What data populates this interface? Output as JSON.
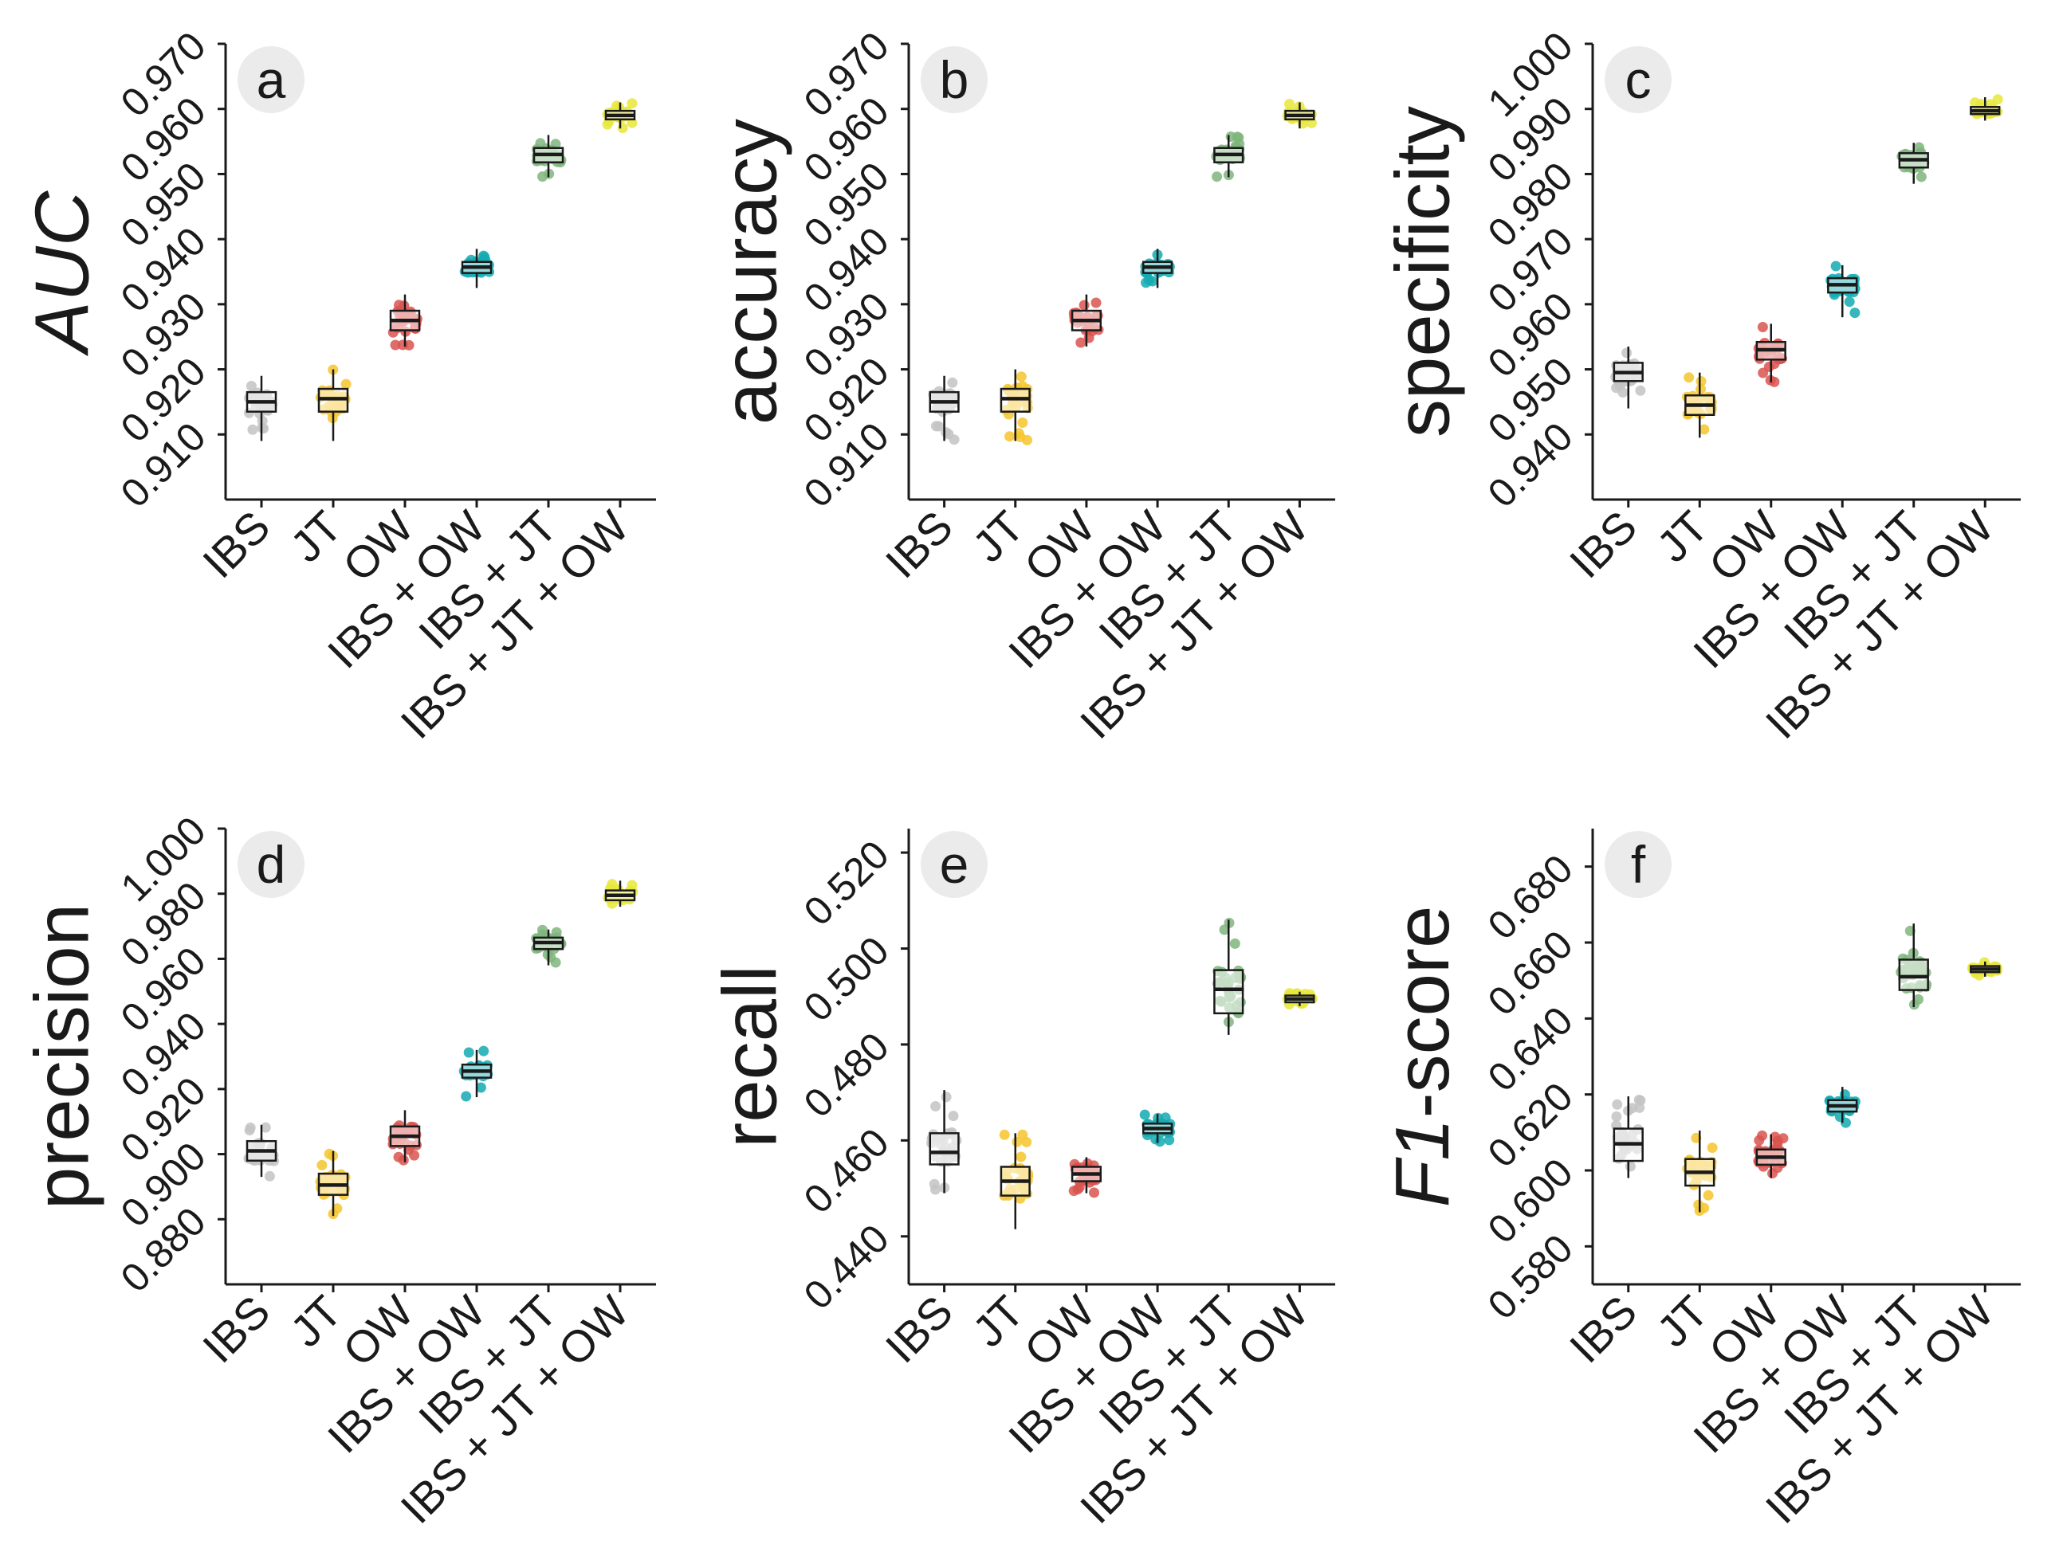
{
  "categories": [
    "IBS",
    "JT",
    "OW",
    "IBS + OW",
    "IBS + JT",
    "IBS + JT + OW"
  ],
  "colors": [
    "#c3c3c3",
    "#f6c52d",
    "#d9534f",
    "#14aab1",
    "#7fb57d",
    "#e8e83a"
  ],
  "chart_data": [
    {
      "type": "box",
      "letter": "a",
      "ylabel": "AUC",
      "ylabel_italic": true,
      "ylim": [
        0.9,
        0.97
      ],
      "ticks": [
        0.91,
        0.92,
        0.93,
        0.94,
        0.95,
        0.96,
        0.97
      ],
      "tick_labels": [
        "0.910",
        "0.920",
        "0.930",
        "0.940",
        "0.950",
        "0.960",
        "0.970"
      ],
      "boxes": [
        {
          "min": 0.909,
          "q1": 0.9135,
          "median": 0.915,
          "q3": 0.9165,
          "max": 0.919
        },
        {
          "min": 0.909,
          "q1": 0.9135,
          "median": 0.9155,
          "q3": 0.917,
          "max": 0.92
        },
        {
          "min": 0.9235,
          "q1": 0.926,
          "median": 0.9275,
          "q3": 0.929,
          "max": 0.9315
        },
        {
          "min": 0.9325,
          "q1": 0.9348,
          "median": 0.9357,
          "q3": 0.9365,
          "max": 0.9385
        },
        {
          "min": 0.9495,
          "q1": 0.9518,
          "median": 0.953,
          "q3": 0.954,
          "max": 0.956
        },
        {
          "min": 0.957,
          "q1": 0.9584,
          "median": 0.959,
          "q3": 0.9597,
          "max": 0.961
        }
      ]
    },
    {
      "type": "box",
      "letter": "b",
      "ylabel": "accuracy",
      "ylabel_italic": false,
      "ylim": [
        0.9,
        0.97
      ],
      "ticks": [
        0.91,
        0.92,
        0.93,
        0.94,
        0.95,
        0.96,
        0.97
      ],
      "tick_labels": [
        "0.910",
        "0.920",
        "0.930",
        "0.940",
        "0.950",
        "0.960",
        "0.970"
      ],
      "boxes": [
        {
          "min": 0.909,
          "q1": 0.9135,
          "median": 0.915,
          "q3": 0.9165,
          "max": 0.919
        },
        {
          "min": 0.909,
          "q1": 0.9135,
          "median": 0.9155,
          "q3": 0.917,
          "max": 0.92
        },
        {
          "min": 0.9235,
          "q1": 0.926,
          "median": 0.9275,
          "q3": 0.929,
          "max": 0.9315
        },
        {
          "min": 0.9325,
          "q1": 0.9348,
          "median": 0.9357,
          "q3": 0.9365,
          "max": 0.9385
        },
        {
          "min": 0.9495,
          "q1": 0.9518,
          "median": 0.953,
          "q3": 0.954,
          "max": 0.956
        },
        {
          "min": 0.957,
          "q1": 0.9584,
          "median": 0.959,
          "q3": 0.9597,
          "max": 0.961
        }
      ]
    },
    {
      "type": "box",
      "letter": "c",
      "ylabel": "specificity",
      "ylabel_italic": false,
      "ylim": [
        0.93,
        1.0
      ],
      "ticks": [
        0.94,
        0.95,
        0.96,
        0.97,
        0.98,
        0.99,
        1.0
      ],
      "tick_labels": [
        "0.940",
        "0.950",
        "0.960",
        "0.970",
        "0.980",
        "0.990",
        "1.000"
      ],
      "boxes": [
        {
          "min": 0.944,
          "q1": 0.9482,
          "median": 0.9495,
          "q3": 0.951,
          "max": 0.9535
        },
        {
          "min": 0.9395,
          "q1": 0.943,
          "median": 0.9445,
          "q3": 0.946,
          "max": 0.9495
        },
        {
          "min": 0.948,
          "q1": 0.9515,
          "median": 0.953,
          "q3": 0.9542,
          "max": 0.957
        },
        {
          "min": 0.958,
          "q1": 0.9618,
          "median": 0.963,
          "q3": 0.964,
          "max": 0.966
        },
        {
          "min": 0.9785,
          "q1": 0.981,
          "median": 0.9822,
          "q3": 0.9832,
          "max": 0.9848
        },
        {
          "min": 0.9882,
          "q1": 0.9892,
          "median": 0.9897,
          "q3": 0.9903,
          "max": 0.9918
        }
      ]
    },
    {
      "type": "box",
      "letter": "d",
      "ylabel": "precision",
      "ylabel_italic": false,
      "ylim": [
        0.86,
        1.0
      ],
      "ticks": [
        0.88,
        0.9,
        0.92,
        0.94,
        0.96,
        0.98,
        1.0
      ],
      "tick_labels": [
        "0.880",
        "0.900",
        "0.920",
        "0.940",
        "0.960",
        "0.980",
        "1.000"
      ],
      "boxes": [
        {
          "min": 0.893,
          "q1": 0.898,
          "median": 0.901,
          "q3": 0.904,
          "max": 0.909
        },
        {
          "min": 0.881,
          "q1": 0.8875,
          "median": 0.8905,
          "q3": 0.894,
          "max": 0.901
        },
        {
          "min": 0.8975,
          "q1": 0.9025,
          "median": 0.9055,
          "q3": 0.9085,
          "max": 0.9135
        },
        {
          "min": 0.9175,
          "q1": 0.9235,
          "median": 0.9255,
          "q3": 0.9275,
          "max": 0.932
        },
        {
          "min": 0.958,
          "q1": 0.963,
          "median": 0.965,
          "q3": 0.9665,
          "max": 0.969
        },
        {
          "min": 0.976,
          "q1": 0.978,
          "median": 0.9795,
          "q3": 0.981,
          "max": 0.984
        }
      ]
    },
    {
      "type": "box",
      "letter": "e",
      "ylabel": "recall",
      "ylabel_italic": false,
      "ylim": [
        0.43,
        0.525
      ],
      "ticks": [
        0.44,
        0.46,
        0.48,
        0.5,
        0.52
      ],
      "tick_labels": [
        "0.440",
        "0.460",
        "0.480",
        "0.500",
        "0.520"
      ],
      "boxes": [
        {
          "min": 0.449,
          "q1": 0.455,
          "median": 0.4575,
          "q3": 0.4615,
          "max": 0.4705
        },
        {
          "min": 0.4415,
          "q1": 0.4485,
          "median": 0.4515,
          "q3": 0.4545,
          "max": 0.4615
        },
        {
          "min": 0.449,
          "q1": 0.4515,
          "median": 0.453,
          "q3": 0.4545,
          "max": 0.4565
        },
        {
          "min": 0.4595,
          "q1": 0.4615,
          "median": 0.4625,
          "q3": 0.4635,
          "max": 0.4655
        },
        {
          "min": 0.482,
          "q1": 0.4865,
          "median": 0.4915,
          "q3": 0.4955,
          "max": 0.506
        },
        {
          "min": 0.488,
          "q1": 0.4888,
          "median": 0.4895,
          "q3": 0.4902,
          "max": 0.491
        }
      ]
    },
    {
      "type": "box",
      "letter": "f",
      "ylabel": "F1-score",
      "ylabel_italic_part": "F1",
      "ylabel_rest": "-score",
      "ylim": [
        0.57,
        0.69
      ],
      "ticks": [
        0.58,
        0.6,
        0.62,
        0.64,
        0.66,
        0.68
      ],
      "tick_labels": [
        "0.580",
        "0.600",
        "0.620",
        "0.640",
        "0.660",
        "0.680"
      ],
      "boxes": [
        {
          "min": 0.598,
          "q1": 0.6025,
          "median": 0.607,
          "q3": 0.611,
          "max": 0.6195
        },
        {
          "min": 0.589,
          "q1": 0.596,
          "median": 0.5995,
          "q3": 0.603,
          "max": 0.6105
        },
        {
          "min": 0.598,
          "q1": 0.6015,
          "median": 0.6035,
          "q3": 0.6055,
          "max": 0.6095
        },
        {
          "min": 0.6125,
          "q1": 0.6155,
          "median": 0.617,
          "q3": 0.6185,
          "max": 0.622
        },
        {
          "min": 0.643,
          "q1": 0.6475,
          "median": 0.651,
          "q3": 0.6555,
          "max": 0.665
        },
        {
          "min": 0.651,
          "q1": 0.6522,
          "median": 0.653,
          "q3": 0.6538,
          "max": 0.655
        }
      ]
    }
  ]
}
